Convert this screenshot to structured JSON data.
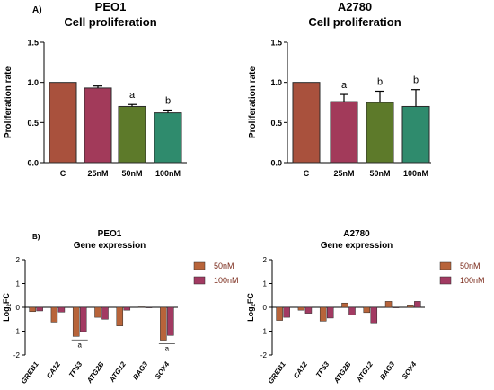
{
  "labels": {
    "a": "A)",
    "b": "B)"
  },
  "chart_data": [
    {
      "type": "bar",
      "title": "PEO1",
      "subtitle": "Cell proliferation",
      "ylabel": "Proliferation rate",
      "categories": [
        "C",
        "25nM",
        "50nM",
        "100nM"
      ],
      "values": [
        1.0,
        0.93,
        0.7,
        0.62
      ],
      "errors": [
        0,
        0.025,
        0.025,
        0.035
      ],
      "annotations": [
        "",
        "",
        "a",
        "b"
      ],
      "colors": [
        "#a9513d",
        "#a23a5a",
        "#5d7a2a",
        "#2f8b6d"
      ],
      "ylim": [
        0,
        1.5
      ],
      "yticks": [
        "0.0",
        "0.5",
        "1.0",
        "1.5"
      ]
    },
    {
      "type": "bar",
      "title": "A2780",
      "subtitle": "Cell proliferation",
      "ylabel": "Proliferation rate",
      "categories": [
        "C",
        "25nM",
        "50nM",
        "100nM"
      ],
      "values": [
        1.0,
        0.76,
        0.75,
        0.7
      ],
      "errors": [
        0,
        0.09,
        0.14,
        0.21
      ],
      "annotations": [
        "",
        "a",
        "b",
        "b"
      ],
      "colors": [
        "#a9513d",
        "#a23a5a",
        "#5d7a2a",
        "#2f8b6d"
      ],
      "ylim": [
        0,
        1.5
      ],
      "yticks": [
        "0.0",
        "0.5",
        "1.0",
        "1.5"
      ]
    },
    {
      "type": "bar",
      "title": "PEO1",
      "subtitle": "Gene expression",
      "ylabel": "Log2FC",
      "categories": [
        "GREB1",
        "CA12",
        "TP53",
        "ATG2B",
        "ATG12",
        "BAG3",
        "SOX4"
      ],
      "series": [
        {
          "name": "50nM",
          "values": [
            -0.18,
            -0.62,
            -1.22,
            -0.42,
            -0.78,
            0.02,
            -1.38
          ],
          "color": "#b8643a"
        },
        {
          "name": "100nM",
          "values": [
            -0.15,
            -0.2,
            -1.02,
            -0.5,
            -0.12,
            0.0,
            -1.18
          ],
          "color": "#a23a62"
        }
      ],
      "annotations": [
        {
          "category": "TP53",
          "label": "a"
        },
        {
          "category": "SOX4",
          "label": "a"
        }
      ],
      "ylim": [
        -2,
        2
      ],
      "yticks": [
        "-2",
        "-1",
        "0",
        "1",
        "2"
      ]
    },
    {
      "type": "bar",
      "title": "A2780",
      "subtitle": "Gene expression",
      "ylabel": "Log2FC",
      "categories": [
        "GREB1",
        "CA12",
        "TP53",
        "ATG2B",
        "ATG12",
        "BAG3",
        "SOX4"
      ],
      "series": [
        {
          "name": "50nM",
          "values": [
            -0.55,
            -0.12,
            -0.58,
            0.18,
            -0.22,
            0.25,
            0.1
          ],
          "color": "#b8643a"
        },
        {
          "name": "100nM",
          "values": [
            -0.42,
            -0.25,
            -0.45,
            -0.32,
            -0.65,
            0.0,
            0.25
          ],
          "color": "#a23a62"
        }
      ],
      "ylim": [
        -2,
        2
      ],
      "yticks": [
        "-2",
        "-1",
        "0",
        "1",
        "2"
      ]
    }
  ]
}
